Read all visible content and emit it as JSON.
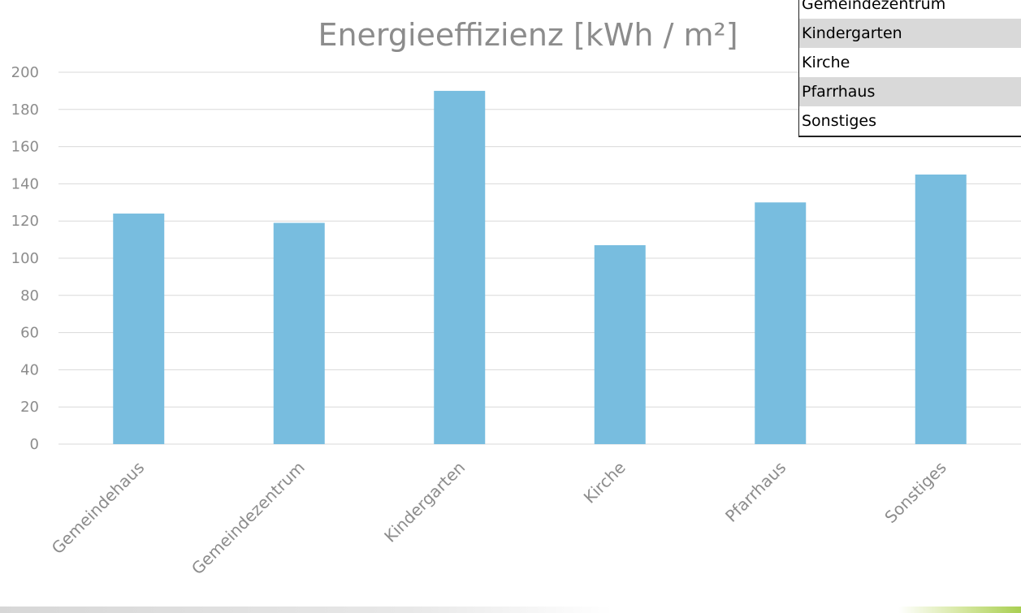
{
  "chart_data": {
    "type": "bar",
    "title": "Energieeffizienz [kWh / m²]",
    "categories": [
      "Gemeindehaus",
      "Gemeindezentrum",
      "Kindergarten",
      "Kirche",
      "Pfarrhaus",
      "Sonstiges"
    ],
    "values": [
      124,
      119,
      190,
      107,
      130,
      145
    ],
    "xlabel": "",
    "ylabel": "",
    "ylim": [
      0,
      200
    ],
    "yticks": [
      0,
      20,
      40,
      60,
      80,
      100,
      120,
      140,
      160,
      180,
      200
    ],
    "grid": true,
    "bar_color": "#78bddf"
  },
  "filter_list": {
    "items": [
      "Gemeindezentrum",
      "Kindergarten",
      "Kirche",
      "Pfarrhaus",
      "Sonstiges"
    ]
  }
}
